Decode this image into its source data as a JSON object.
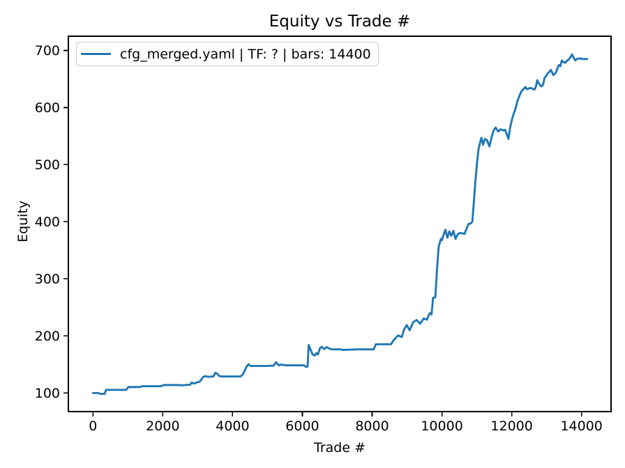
{
  "figure": {
    "background": "#ffffff"
  },
  "colors": {
    "line": "#1f77b4",
    "axis": "#000000",
    "text": "#000000",
    "legend_border": "#cccccc",
    "legend_background": "rgba(255,255,255,0.8)"
  },
  "chart_data": {
    "type": "line",
    "title": "Equity vs Trade #",
    "xlabel": "Trade #",
    "ylabel": "Equity",
    "xlim": [
      -706,
      14846
    ],
    "ylim": [
      67.5,
      725
    ],
    "x_ticks": [
      0,
      2000,
      4000,
      6000,
      8000,
      10000,
      12000,
      14000
    ],
    "y_ticks": [
      100,
      200,
      300,
      400,
      500,
      600,
      700
    ],
    "grid": false,
    "legend": {
      "position": "upper-left",
      "entries": [
        {
          "label": "cfg_merged.yaml | TF: ? | bars: 14400",
          "color": "#1f77b4"
        }
      ]
    },
    "series": [
      {
        "name": "cfg_merged.yaml | TF: ? | bars: 14400",
        "color": "#1f77b4",
        "points": [
          [
            0,
            100
          ],
          [
            150,
            100
          ],
          [
            210,
            98.5
          ],
          [
            330,
            98.5
          ],
          [
            375,
            105.5
          ],
          [
            700,
            105.5
          ],
          [
            950,
            105.5
          ],
          [
            1015,
            110.5
          ],
          [
            1340,
            110.5
          ],
          [
            1405,
            112
          ],
          [
            1950,
            112
          ],
          [
            2020,
            114
          ],
          [
            2470,
            114
          ],
          [
            2520,
            113.5
          ],
          [
            2780,
            114.5
          ],
          [
            2830,
            118.5
          ],
          [
            2885,
            116.5
          ],
          [
            2950,
            118
          ],
          [
            3060,
            120
          ],
          [
            3160,
            128.5
          ],
          [
            3230,
            129.5
          ],
          [
            3300,
            128.5
          ],
          [
            3450,
            129
          ],
          [
            3505,
            135.5
          ],
          [
            3560,
            134
          ],
          [
            3625,
            129.5
          ],
          [
            3700,
            129
          ],
          [
            4230,
            129
          ],
          [
            4300,
            133
          ],
          [
            4400,
            146
          ],
          [
            4455,
            150.5
          ],
          [
            4510,
            147.5
          ],
          [
            5000,
            147.5
          ],
          [
            5180,
            148
          ],
          [
            5245,
            154
          ],
          [
            5330,
            148.5
          ],
          [
            5405,
            150
          ],
          [
            5500,
            148.5
          ],
          [
            6050,
            148.5
          ],
          [
            6105,
            145.5
          ],
          [
            6150,
            146.5
          ],
          [
            6180,
            184
          ],
          [
            6235,
            176
          ],
          [
            6290,
            168
          ],
          [
            6355,
            165.5
          ],
          [
            6400,
            170
          ],
          [
            6445,
            167.5
          ],
          [
            6505,
            178.5
          ],
          [
            6560,
            181
          ],
          [
            6625,
            177
          ],
          [
            6705,
            180.5
          ],
          [
            6780,
            177.5
          ],
          [
            6855,
            176.5
          ],
          [
            7100,
            176.5
          ],
          [
            7155,
            175.5
          ],
          [
            7600,
            176.5
          ],
          [
            8045,
            176.5
          ],
          [
            8105,
            185.5
          ],
          [
            8540,
            185.5
          ],
          [
            8615,
            192.5
          ],
          [
            8745,
            201
          ],
          [
            8845,
            198
          ],
          [
            8915,
            211.5
          ],
          [
            8990,
            219
          ],
          [
            9075,
            210
          ],
          [
            9175,
            224
          ],
          [
            9275,
            228
          ],
          [
            9375,
            221.5
          ],
          [
            9475,
            230.5
          ],
          [
            9570,
            228.5
          ],
          [
            9625,
            237
          ],
          [
            9655,
            240
          ],
          [
            9700,
            237.5
          ],
          [
            9725,
            252
          ],
          [
            9745,
            267
          ],
          [
            9810,
            267.5
          ],
          [
            9835,
            292
          ],
          [
            9860,
            318
          ],
          [
            9885,
            340
          ],
          [
            9910,
            358
          ],
          [
            9940,
            363
          ],
          [
            9970,
            370
          ],
          [
            10005,
            368
          ],
          [
            10040,
            376
          ],
          [
            10100,
            386
          ],
          [
            10155,
            372
          ],
          [
            10210,
            383
          ],
          [
            10270,
            375.5
          ],
          [
            10330,
            384
          ],
          [
            10390,
            370
          ],
          [
            10450,
            378
          ],
          [
            10510,
            380.5
          ],
          [
            10650,
            379
          ],
          [
            10705,
            388
          ],
          [
            10760,
            396
          ],
          [
            10825,
            397
          ],
          [
            10870,
            400
          ],
          [
            10915,
            435
          ],
          [
            10955,
            468
          ],
          [
            11000,
            500
          ],
          [
            11050,
            528
          ],
          [
            11090,
            538
          ],
          [
            11130,
            547
          ],
          [
            11180,
            535
          ],
          [
            11230,
            545
          ],
          [
            11290,
            543
          ],
          [
            11360,
            532
          ],
          [
            11430,
            550
          ],
          [
            11490,
            561
          ],
          [
            11540,
            565
          ],
          [
            11610,
            558
          ],
          [
            11680,
            562
          ],
          [
            11760,
            560
          ],
          [
            11810,
            561
          ],
          [
            11860,
            553
          ],
          [
            11905,
            545
          ],
          [
            11955,
            565
          ],
          [
            12010,
            580
          ],
          [
            12060,
            590
          ],
          [
            12105,
            597
          ],
          [
            12160,
            611
          ],
          [
            12230,
            622
          ],
          [
            12275,
            628
          ],
          [
            12330,
            632
          ],
          [
            12390,
            636
          ],
          [
            12435,
            632
          ],
          [
            12530,
            634.5
          ],
          [
            12600,
            633
          ],
          [
            12655,
            631.5
          ],
          [
            12700,
            638
          ],
          [
            12730,
            648
          ],
          [
            12755,
            645
          ],
          [
            12795,
            641
          ],
          [
            12845,
            637
          ],
          [
            12895,
            639.5
          ],
          [
            12940,
            652
          ],
          [
            12985,
            655.5
          ],
          [
            13030,
            660
          ],
          [
            13085,
            663
          ],
          [
            13125,
            666
          ],
          [
            13190,
            657
          ],
          [
            13260,
            660.5
          ],
          [
            13305,
            668
          ],
          [
            13350,
            674.5
          ],
          [
            13395,
            672.5
          ],
          [
            13435,
            682.5
          ],
          [
            13480,
            680
          ],
          [
            13535,
            678.5
          ],
          [
            13585,
            682
          ],
          [
            13635,
            684.5
          ],
          [
            13685,
            688.5
          ],
          [
            13730,
            693
          ],
          [
            13780,
            686.5
          ],
          [
            13825,
            682.5
          ],
          [
            13875,
            685.5
          ],
          [
            13960,
            686
          ],
          [
            14050,
            685
          ],
          [
            14160,
            685
          ]
        ]
      }
    ]
  }
}
